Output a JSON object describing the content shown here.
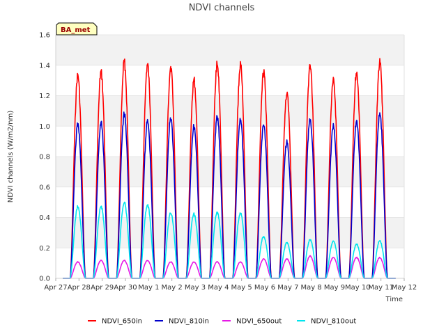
{
  "chart_data": {
    "type": "line",
    "title": "NDVI channels",
    "xlabel": "Time",
    "ylabel": "NDVI channels (W/m2/nm)",
    "badge": "BA_met",
    "ylim": [
      0.0,
      1.6
    ],
    "yticks": [
      0.0,
      0.2,
      0.4,
      0.6,
      0.8,
      1.0,
      1.2,
      1.4,
      1.6
    ],
    "ytick_labels": [
      "0.0",
      "0.2",
      "0.4",
      "0.6",
      "0.8",
      "1.0",
      "1.2",
      "1.4",
      "1.6"
    ],
    "xlim": [
      0,
      15
    ],
    "xtick_labels": [
      "Apr 27",
      "Apr 28",
      "Apr 29",
      "Apr 30",
      "May 1",
      "May 2",
      "May 3",
      "May 4",
      "May 5",
      "May 6",
      "May 7",
      "May 8",
      "May 9",
      "May 10",
      "May 11",
      "May 12"
    ],
    "day_offset": [
      1,
      2,
      3,
      4,
      5,
      6,
      7,
      8,
      9,
      10,
      11,
      12,
      13,
      14
    ],
    "noon_offset_days": -0.05,
    "day_half_width_days": 0.33,
    "legend_position": "bottom",
    "series": [
      {
        "name": "NDVI_650in",
        "color": "#ff0000",
        "daily_peaks": [
          1.36,
          1.38,
          1.45,
          1.43,
          1.42,
          1.33,
          1.44,
          1.43,
          1.38,
          1.24,
          1.43,
          1.34,
          1.38,
          1.45
        ]
      },
      {
        "name": "NDVI_810in",
        "color": "#0000cc",
        "daily_peaks": [
          1.03,
          1.04,
          1.1,
          1.05,
          1.07,
          1.02,
          1.08,
          1.07,
          1.03,
          0.91,
          1.07,
          1.02,
          1.05,
          1.11
        ]
      },
      {
        "name": "NDVI_650out",
        "color": "#e619e6",
        "daily_peaks": [
          0.11,
          0.12,
          0.12,
          0.12,
          0.11,
          0.11,
          0.11,
          0.11,
          0.13,
          0.13,
          0.15,
          0.14,
          0.14,
          0.14
        ]
      },
      {
        "name": "NDVI_810out",
        "color": "#00e5ee",
        "daily_peaks": [
          0.48,
          0.48,
          0.51,
          0.49,
          0.44,
          0.43,
          0.44,
          0.44,
          0.28,
          0.24,
          0.26,
          0.25,
          0.23,
          0.25
        ]
      }
    ]
  }
}
